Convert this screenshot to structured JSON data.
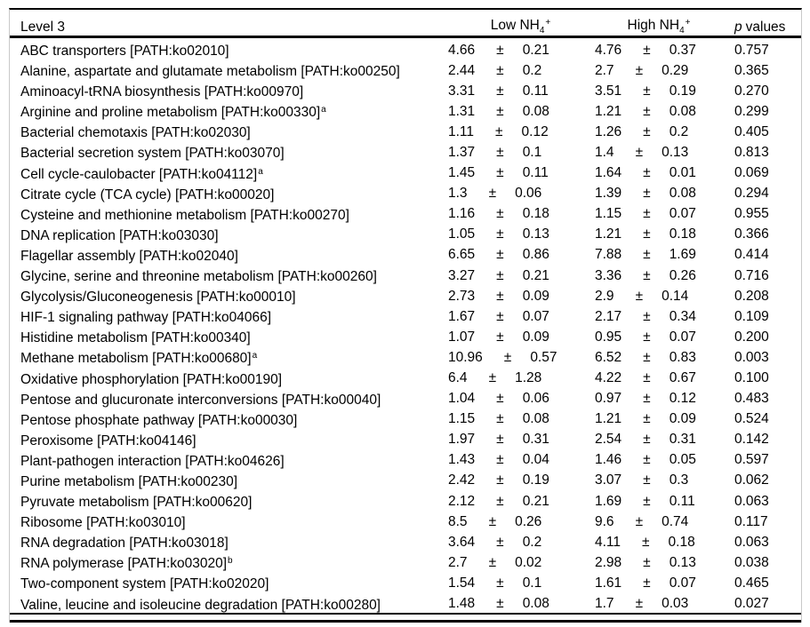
{
  "table": {
    "pm_sign": "±",
    "header": {
      "level3": "Level 3",
      "low_prefix": "Low NH",
      "high_prefix": "High NH",
      "formula_sub": "4",
      "formula_sup": "+",
      "p_italic": "p",
      "p_rest": "values"
    },
    "rows": [
      {
        "name": "ABC transporters [PATH:ko02010]",
        "note": "",
        "low_mean": "4.66",
        "low_sd": "0.21",
        "high_mean": "4.76",
        "high_sd": "0.37",
        "p": "0.757"
      },
      {
        "name": "Alanine, aspartate and glutamate metabolism [PATH:ko00250]",
        "note": "",
        "low_mean": "2.44",
        "low_sd": "0.2",
        "high_mean": "2.7",
        "high_sd": "0.29",
        "p": "0.365"
      },
      {
        "name": "Aminoacyl-tRNA biosynthesis [PATH:ko00970]",
        "note": "",
        "low_mean": "3.31",
        "low_sd": "0.11",
        "high_mean": "3.51",
        "high_sd": "0.19",
        "p": "0.270"
      },
      {
        "name": "Arginine and proline metabolism [PATH:ko00330]",
        "note": "a",
        "low_mean": "1.31",
        "low_sd": "0.08",
        "high_mean": "1.21",
        "high_sd": "0.08",
        "p": "0.299"
      },
      {
        "name": "Bacterial chemotaxis [PATH:ko02030]",
        "note": "",
        "low_mean": "1.11",
        "low_sd": "0.12",
        "high_mean": "1.26",
        "high_sd": "0.2",
        "p": "0.405"
      },
      {
        "name": "Bacterial secretion system [PATH:ko03070]",
        "note": "",
        "low_mean": "1.37",
        "low_sd": "0.1",
        "high_mean": "1.4",
        "high_sd": "0.13",
        "p": "0.813"
      },
      {
        "name": "Cell cycle-caulobacter [PATH:ko04112]",
        "note": "a",
        "low_mean": "1.45",
        "low_sd": "0.11",
        "high_mean": "1.64",
        "high_sd": "0.01",
        "p": "0.069"
      },
      {
        "name": "Citrate cycle (TCA cycle) [PATH:ko00020]",
        "note": "",
        "low_mean": "1.3",
        "low_sd": "0.06",
        "high_mean": "1.39",
        "high_sd": "0.08",
        "p": "0.294"
      },
      {
        "name": "Cysteine and methionine metabolism [PATH:ko00270]",
        "note": "",
        "low_mean": "1.16",
        "low_sd": "0.18",
        "high_mean": "1.15",
        "high_sd": "0.07",
        "p": "0.955"
      },
      {
        "name": "DNA replication [PATH:ko03030]",
        "note": "",
        "low_mean": "1.05",
        "low_sd": "0.13",
        "high_mean": "1.21",
        "high_sd": "0.18",
        "p": "0.366"
      },
      {
        "name": "Flagellar assembly [PATH:ko02040]",
        "note": "",
        "low_mean": "6.65",
        "low_sd": "0.86",
        "high_mean": "7.88",
        "high_sd": "1.69",
        "p": "0.414"
      },
      {
        "name": "Glycine, serine and threonine metabolism [PATH:ko00260]",
        "note": "",
        "low_mean": "3.27",
        "low_sd": "0.21",
        "high_mean": "3.36",
        "high_sd": "0.26",
        "p": "0.716"
      },
      {
        "name": "Glycolysis/Gluconeogenesis [PATH:ko00010]",
        "note": "",
        "low_mean": "2.73",
        "low_sd": "0.09",
        "high_mean": "2.9",
        "high_sd": "0.14",
        "p": "0.208"
      },
      {
        "name": "HIF-1 signaling pathway [PATH:ko04066]",
        "note": "",
        "low_mean": "1.67",
        "low_sd": "0.07",
        "high_mean": "2.17",
        "high_sd": "0.34",
        "p": "0.109"
      },
      {
        "name": "Histidine metabolism [PATH:ko00340]",
        "note": "",
        "low_mean": "1.07",
        "low_sd": "0.09",
        "high_mean": "0.95",
        "high_sd": "0.07",
        "p": "0.200"
      },
      {
        "name": "Methane metabolism [PATH:ko00680]",
        "note": "a",
        "low_mean": "10.96",
        "low_sd": "0.57",
        "high_mean": "6.52",
        "high_sd": "0.83",
        "p": "0.003"
      },
      {
        "name": "Oxidative phosphorylation [PATH:ko00190]",
        "note": "",
        "low_mean": "6.4",
        "low_sd": "1.28",
        "high_mean": "4.22",
        "high_sd": "0.67",
        "p": "0.100"
      },
      {
        "name": "Pentose and glucuronate interconversions [PATH:ko00040]",
        "note": "",
        "low_mean": "1.04",
        "low_sd": "0.06",
        "high_mean": "0.97",
        "high_sd": "0.12",
        "p": "0.483"
      },
      {
        "name": "Pentose phosphate pathway [PATH:ko00030]",
        "note": "",
        "low_mean": "1.15",
        "low_sd": "0.08",
        "high_mean": "1.21",
        "high_sd": "0.09",
        "p": "0.524"
      },
      {
        "name": "Peroxisome [PATH:ko04146]",
        "note": "",
        "low_mean": "1.97",
        "low_sd": "0.31",
        "high_mean": "2.54",
        "high_sd": "0.31",
        "p": "0.142"
      },
      {
        "name": "Plant-pathogen interaction [PATH:ko04626]",
        "note": "",
        "low_mean": "1.43",
        "low_sd": "0.04",
        "high_mean": "1.46",
        "high_sd": "0.05",
        "p": "0.597"
      },
      {
        "name": "Purine metabolism [PATH:ko00230]",
        "note": "",
        "low_mean": "2.42",
        "low_sd": "0.19",
        "high_mean": "3.07",
        "high_sd": "0.3",
        "p": "0.062"
      },
      {
        "name": "Pyruvate metabolism [PATH:ko00620]",
        "note": "",
        "low_mean": "2.12",
        "low_sd": "0.21",
        "high_mean": "1.69",
        "high_sd": "0.11",
        "p": "0.063"
      },
      {
        "name": "Ribosome [PATH:ko03010]",
        "note": "",
        "low_mean": "8.5",
        "low_sd": "0.26",
        "high_mean": "9.6",
        "high_sd": "0.74",
        "p": "0.117"
      },
      {
        "name": "RNA degradation [PATH:ko03018]",
        "note": "",
        "low_mean": "3.64",
        "low_sd": "0.2",
        "high_mean": "4.11",
        "high_sd": "0.18",
        "p": "0.063"
      },
      {
        "name": "RNA polymerase [PATH:ko03020]",
        "note": "b",
        "low_mean": "2.7",
        "low_sd": "0.02",
        "high_mean": "2.98",
        "high_sd": "0.13",
        "p": "0.038"
      },
      {
        "name": "Two-component system [PATH:ko02020]",
        "note": "",
        "low_mean": "1.54",
        "low_sd": "0.1",
        "high_mean": "1.61",
        "high_sd": "0.07",
        "p": "0.465"
      },
      {
        "name": "Valine, leucine and isoleucine degradation [PATH:ko00280]",
        "note": "",
        "low_mean": "1.48",
        "low_sd": "0.08",
        "high_mean": "1.7",
        "high_sd": "0.03",
        "p": "0.027"
      }
    ]
  }
}
